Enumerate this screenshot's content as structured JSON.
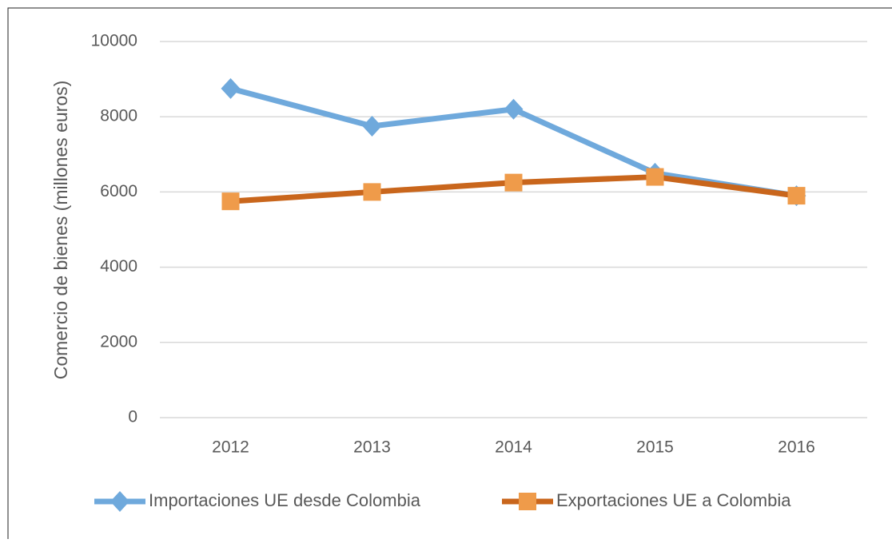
{
  "chart_data": {
    "type": "line",
    "y_label": "Comercio de bienes (millones euros)",
    "categories": [
      "2012",
      "2013",
      "2014",
      "2015",
      "2016"
    ],
    "series": [
      {
        "name": "Importaciones UE desde Colombia",
        "color": "#6fa9dc",
        "marker_color": "#6fa9dc",
        "marker": "diamond",
        "values": [
          8750,
          7750,
          8200,
          6500,
          5900
        ]
      },
      {
        "name": "Exportaciones UE a Colombia",
        "color": "#c9661c",
        "marker_color": "#ef9b4a",
        "marker": "square",
        "values": [
          5750,
          6000,
          6250,
          6400,
          5900
        ]
      }
    ],
    "ylim": [
      0,
      10000
    ],
    "yticks": [
      0,
      2000,
      4000,
      6000,
      8000,
      10000
    ],
    "grid": true,
    "legend": "bottom"
  }
}
